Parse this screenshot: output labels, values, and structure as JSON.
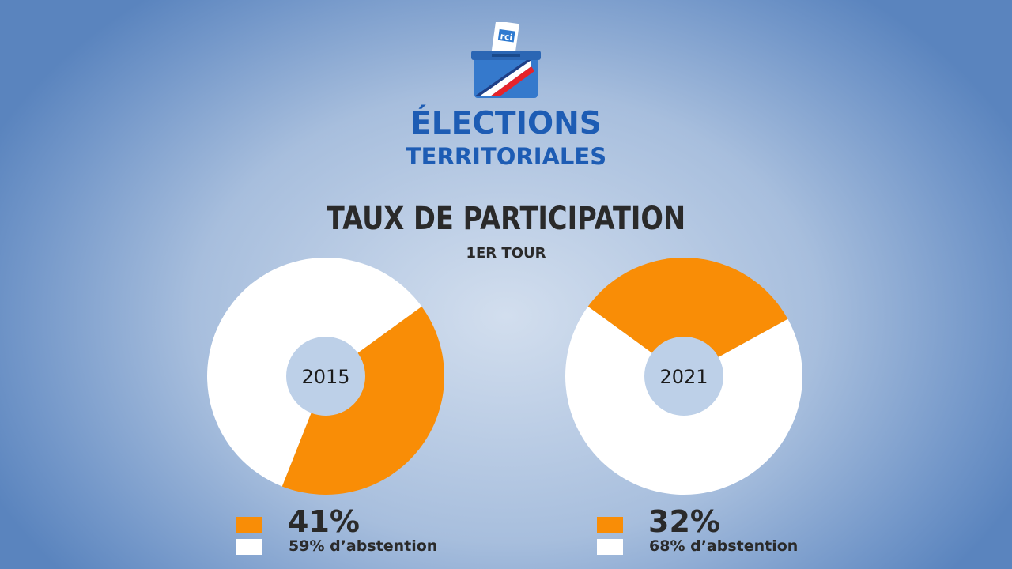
{
  "header": {
    "brand_line1": "ÉLECTIONS",
    "brand_line2": "TERRITORIALES",
    "logo_label": "rci"
  },
  "colors": {
    "participation": "#f98d06",
    "abstention": "#ffffff",
    "center_hole": "#bdd0e8",
    "brand_blue": "#1d5cb4"
  },
  "chart_data": [
    {
      "type": "pie",
      "title": "TAUX DE PARTICIPATION",
      "subtitle": "1ER TOUR",
      "center_label": "2015",
      "slices": [
        {
          "label": "41%",
          "value": 41,
          "color": "#f98d06"
        },
        {
          "label": "59% d’abstention",
          "value": 59,
          "color": "#ffffff"
        }
      ]
    },
    {
      "type": "pie",
      "title": "TAUX DE PARTICIPATION",
      "subtitle": "1ER TOUR",
      "center_label": "2021",
      "slices": [
        {
          "label": "32%",
          "value": 32,
          "color": "#f98d06"
        },
        {
          "label": "68% d’abstention",
          "value": 68,
          "color": "#ffffff"
        }
      ]
    }
  ]
}
